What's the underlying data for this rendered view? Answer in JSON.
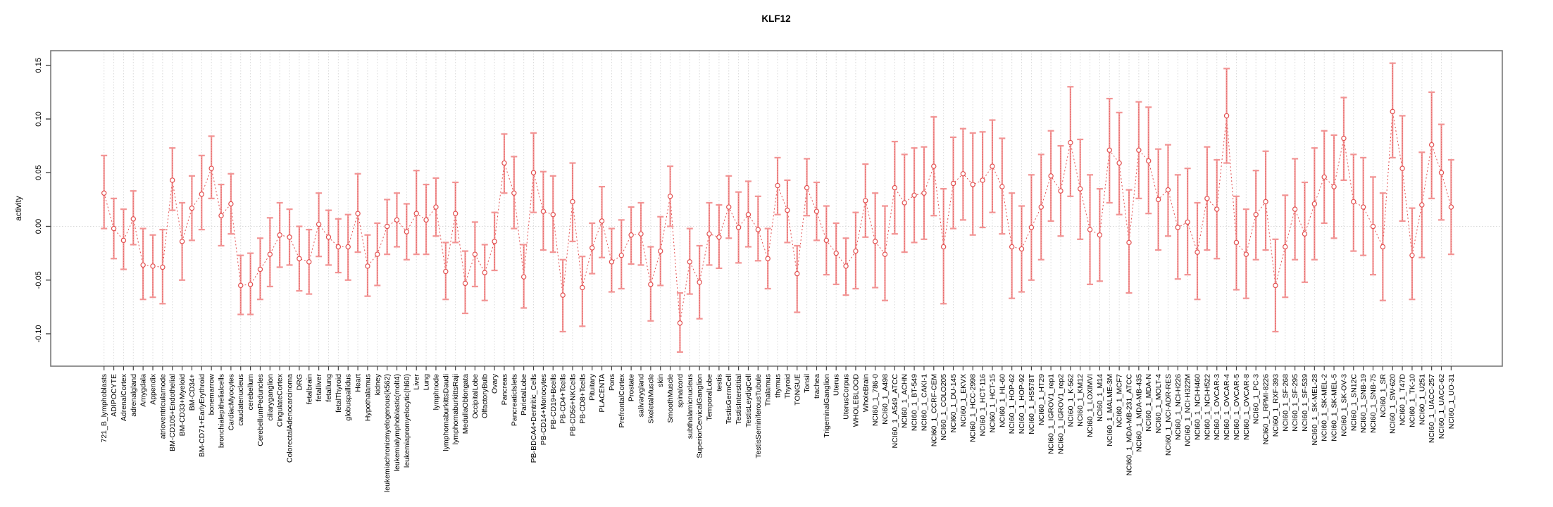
{
  "page": {
    "background": "#ffffff"
  },
  "chart_data": {
    "type": "line",
    "title": "KLF12",
    "xlabel": "",
    "ylabel": "activity",
    "ylim": [
      -0.13,
      0.163
    ],
    "yticks": [
      0.15,
      0.1,
      0.05,
      0.0,
      -0.05,
      -0.1
    ],
    "legend_position": "none",
    "grid": {
      "vertical_per_category": true,
      "horizontal_zero_line": true
    },
    "style": {
      "point": "open-circle",
      "error_bars": true,
      "connecting_line": "dotted"
    },
    "colors": {
      "point": "#e25050",
      "line": "#e25050",
      "error_bar": "#f29494",
      "error_bar_center": "#e06060",
      "grid": "#d9d9d9",
      "zero_line": "#d9d9d9",
      "box": "#7a7a7a",
      "tick": "#444444",
      "text": "#000000"
    },
    "categories": [
      "721_B_lymphoblasts",
      "ADIPOCYTE",
      "AdrenalCortex",
      "adrenalgland",
      "Amygdala",
      "Appendix",
      "atrioventricularnode",
      "BM-CD105+Endothelial",
      "BM-CD33+Myeloid",
      "BM-CD34+",
      "BM-CD71+EarlyErythroid",
      "bonemarrow",
      "bronchialepithelialcells",
      "CardiacMyocytes",
      "caudatenucleus",
      "cerebellum",
      "CerebellumPeduncles",
      "ciliaryganglion",
      "CingulateCortex",
      "ColorectalAdenocarcinoma",
      "DRG",
      "fetalbrain",
      "fetalliver",
      "fetallung",
      "fetalThyroid",
      "globuspallidus",
      "Heart",
      "Hypothalamus",
      "kidney",
      "leukemiachronicmyelogenous(k562)",
      "leukemialymphoblastic(molt4)",
      "leukemiapromyelocytic(hl60)",
      "Liver",
      "Lung",
      "lymphnode",
      "lymphomaburkittsDaudi",
      "lymphomaburkittsRaji",
      "MedullaOblongata",
      "OccipitalLobe",
      "OlfactoryBulb",
      "Ovary",
      "Pancreas",
      "PancreaticIslets",
      "ParietalLobe",
      "PB-BDCA4+Dentritic_Cells",
      "PB-CD14+Monocytes",
      "PB-CD19+Bcells",
      "PB-CD4+Tcells",
      "PB-CD56+NKCells",
      "PB-CD8+Tcells",
      "Pituitary",
      "PLACENTA",
      "Pons",
      "PrefrontalCortex",
      "Prostate",
      "salivarygland",
      "SkeletalMuscle",
      "skin",
      "SmoothMuscle",
      "spinalcord",
      "subthalamicnucleus",
      "SuperiorCervicalGanglion",
      "TemporalLobe",
      "testis",
      "TestisGermCell",
      "TestisInterstitial",
      "TestisLeydigCell",
      "TestisSeminiferousTubule",
      "Thalamus",
      "thymus",
      "Thyroid",
      "TONGUE",
      "Tonsil",
      "trachea",
      "TrigeminalGanglion",
      "Uterus",
      "UterusCorpus",
      "WHOLEBLOOD",
      "WholeBrain",
      "NCI60_1_786-0",
      "NCI60_1_A498",
      "NCI60_1_A549_ATCC",
      "NCI60_1_ACHN",
      "NCI60_1_BT-549",
      "NCI60_1_CAKI-1",
      "NCI60_1_CCRF-CEM",
      "NCI60_1_COLO205",
      "NCI60_1_DU-145",
      "NCI60_1_EKVX",
      "NCI60_1_HCC-2998",
      "NCI60_1_HCT-116",
      "NCI60_1_HCT-15",
      "NCI60_1_HL-60",
      "NCI60_1_HOP-62",
      "NCI60_1_HOP-92",
      "NCI60_1_HS578T",
      "NCI60_1_HT29",
      "NCI60_1_IGROV1_rep1",
      "NCI60_1_IGROV1_rep2",
      "NCI60_1_K-562",
      "NCI60_1_KM12",
      "NCI60_1_LOXIMVI",
      "NCI60_1_M14",
      "NCI60_1_MALME-3M",
      "NCI60_1_MCF7",
      "NCI60_1_MDA-MB-231_ATCC",
      "NCI60_1_MDA-MB-435",
      "NCI60_1_MDA-N",
      "NCI60_1_MOLT-4",
      "NCI60_1_NCI-ADR-RES",
      "NCI60_1_NCI-H226",
      "NCI60_1_NCI-H322M",
      "NCI60_1_NCI-H460",
      "NCI60_1_NCI-H522",
      "NCI60_1_OVCAR-3",
      "NCI60_1_OVCAR-4",
      "NCI60_1_OVCAR-5",
      "NCI60_1_OVCAR-8",
      "NCI60_1_PC-3",
      "NCI60_1_RPMI-8226",
      "NCI60_1_RXF-393",
      "NCI60_1_SF-268",
      "NCI60_1_SF-295",
      "NCI60_1_SF-539",
      "NCI60_1_SK-MEL-28",
      "NCI60_1_SK-MEL-2",
      "NCI60_1_SK-MEL-5",
      "NCI60_1_SK-OV-3",
      "NCI60_1_SN12C",
      "NCI60_1_SNB-19",
      "NCI60_1_SNB-75",
      "NCI60_1_SR",
      "NCI60_1_SW-620",
      "NCI60_1_T47D",
      "NCI60_1_TK-10",
      "NCI60_1_U251",
      "NCI60_1_UACC-257",
      "NCI60_1_UACC-62",
      "NCI60_1_UO-31"
    ],
    "series": [
      {
        "name": "activity",
        "values": [
          0.031,
          -0.002,
          -0.013,
          0.007,
          -0.036,
          -0.037,
          -0.038,
          0.043,
          -0.014,
          0.017,
          0.03,
          0.054,
          0.01,
          0.021,
          -0.055,
          -0.054,
          -0.04,
          -0.026,
          -0.008,
          -0.01,
          -0.03,
          -0.033,
          0.002,
          -0.01,
          -0.019,
          -0.019,
          0.012,
          -0.037,
          -0.026,
          0.0,
          0.006,
          -0.005,
          0.012,
          0.006,
          0.018,
          -0.042,
          0.012,
          -0.053,
          -0.026,
          -0.043,
          -0.014,
          0.059,
          0.031,
          -0.047,
          0.05,
          0.014,
          0.011,
          -0.064,
          0.023,
          -0.057,
          -0.02,
          0.005,
          -0.033,
          -0.027,
          -0.008,
          -0.007,
          -0.054,
          -0.023,
          0.028,
          -0.09,
          -0.033,
          -0.052,
          -0.007,
          -0.01,
          0.018,
          -0.001,
          0.011,
          -0.003,
          -0.03,
          0.038,
          0.015,
          -0.044,
          0.036,
          0.014,
          -0.013,
          -0.025,
          -0.037,
          -0.023,
          0.024,
          -0.014,
          -0.026,
          0.036,
          0.022,
          0.029,
          0.031,
          0.056,
          -0.019,
          0.04,
          0.049,
          0.039,
          0.043,
          0.056,
          0.037,
          -0.019,
          -0.021,
          -0.001,
          0.018,
          0.047,
          0.033,
          0.078,
          0.035,
          -0.003,
          -0.008,
          0.071,
          0.059,
          -0.015,
          0.071,
          0.061,
          0.025,
          0.034,
          -0.001,
          0.004,
          -0.024,
          0.026,
          0.016,
          0.103,
          -0.015,
          -0.026,
          0.011,
          0.023,
          -0.055,
          -0.019,
          0.016,
          -0.007,
          0.021,
          0.046,
          0.037,
          0.082,
          0.023,
          0.018,
          0.0,
          -0.019,
          0.107,
          0.054,
          -0.027,
          0.02,
          0.076,
          0.05,
          0.018
        ],
        "err_hi": [
          0.066,
          0.026,
          0.016,
          0.033,
          -0.002,
          -0.008,
          -0.003,
          0.073,
          0.022,
          0.047,
          0.066,
          0.084,
          0.039,
          0.049,
          -0.027,
          -0.025,
          -0.011,
          0.008,
          0.022,
          0.016,
          0.0,
          -0.003,
          0.031,
          0.015,
          0.007,
          0.011,
          0.049,
          -0.008,
          0.003,
          0.025,
          0.031,
          0.021,
          0.052,
          0.039,
          0.045,
          -0.015,
          0.041,
          -0.023,
          0.004,
          -0.017,
          0.013,
          0.086,
          0.065,
          -0.017,
          0.087,
          0.051,
          0.047,
          -0.031,
          0.059,
          -0.028,
          0.003,
          0.037,
          -0.002,
          0.006,
          0.018,
          0.022,
          -0.019,
          0.009,
          0.056,
          -0.062,
          -0.002,
          -0.018,
          0.022,
          0.02,
          0.047,
          0.032,
          0.042,
          0.028,
          -0.002,
          0.064,
          0.043,
          -0.018,
          0.063,
          0.041,
          0.019,
          0.003,
          -0.011,
          0.013,
          0.058,
          0.031,
          0.019,
          0.079,
          0.067,
          0.073,
          0.074,
          0.102,
          0.035,
          0.083,
          0.091,
          0.087,
          0.088,
          0.099,
          0.082,
          0.031,
          0.019,
          0.048,
          0.067,
          0.089,
          0.075,
          0.13,
          0.081,
          0.048,
          0.035,
          0.119,
          0.106,
          0.034,
          0.116,
          0.111,
          0.072,
          0.076,
          0.048,
          0.054,
          0.022,
          0.074,
          0.062,
          0.147,
          0.028,
          0.016,
          0.052,
          0.07,
          -0.012,
          0.029,
          0.063,
          0.041,
          0.073,
          0.089,
          0.085,
          0.12,
          0.067,
          0.064,
          0.046,
          0.031,
          0.152,
          0.103,
          0.017,
          0.069,
          0.125,
          0.095,
          0.062
        ],
        "err_lo": [
          -0.002,
          -0.03,
          -0.04,
          -0.017,
          -0.068,
          -0.066,
          -0.072,
          0.015,
          -0.05,
          -0.013,
          -0.003,
          0.026,
          -0.018,
          -0.007,
          -0.082,
          -0.082,
          -0.068,
          -0.056,
          -0.038,
          -0.036,
          -0.06,
          -0.063,
          -0.028,
          -0.036,
          -0.043,
          -0.05,
          -0.024,
          -0.065,
          -0.055,
          -0.026,
          -0.019,
          -0.031,
          -0.026,
          -0.026,
          -0.009,
          -0.068,
          -0.015,
          -0.081,
          -0.056,
          -0.069,
          -0.041,
          0.031,
          -0.002,
          -0.076,
          0.013,
          -0.022,
          -0.024,
          -0.098,
          -0.014,
          -0.093,
          -0.044,
          -0.029,
          -0.061,
          -0.058,
          -0.035,
          -0.036,
          -0.088,
          -0.055,
          0.0,
          -0.117,
          -0.063,
          -0.086,
          -0.036,
          -0.039,
          -0.011,
          -0.034,
          -0.019,
          -0.032,
          -0.058,
          0.011,
          -0.015,
          -0.08,
          0.01,
          -0.013,
          -0.045,
          -0.054,
          -0.064,
          -0.058,
          -0.01,
          -0.057,
          -0.069,
          -0.007,
          -0.024,
          -0.015,
          -0.012,
          0.01,
          -0.072,
          -0.002,
          0.006,
          -0.008,
          -0.001,
          0.013,
          -0.007,
          -0.067,
          -0.061,
          -0.05,
          -0.031,
          0.005,
          -0.009,
          0.028,
          -0.012,
          -0.054,
          -0.051,
          0.022,
          0.011,
          -0.062,
          0.026,
          0.012,
          -0.022,
          -0.009,
          -0.049,
          -0.045,
          -0.068,
          -0.022,
          -0.03,
          0.059,
          -0.059,
          -0.067,
          -0.031,
          -0.022,
          -0.098,
          -0.066,
          -0.031,
          -0.052,
          -0.031,
          0.003,
          -0.011,
          0.043,
          -0.023,
          -0.027,
          -0.045,
          -0.069,
          0.064,
          0.005,
          -0.068,
          -0.029,
          0.026,
          0.006,
          -0.026
        ]
      }
    ]
  }
}
